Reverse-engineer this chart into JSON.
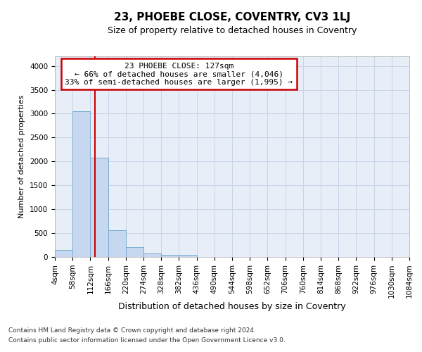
{
  "title": "23, PHOEBE CLOSE, COVENTRY, CV3 1LJ",
  "subtitle": "Size of property relative to detached houses in Coventry",
  "xlabel": "Distribution of detached houses by size in Coventry",
  "ylabel": "Number of detached properties",
  "bar_color": "#c5d8f0",
  "bar_edge_color": "#7aabcf",
  "bin_edges": [
    4,
    58,
    112,
    166,
    220,
    274,
    328,
    382,
    436,
    490,
    544,
    598,
    652,
    706,
    760,
    814,
    868,
    922,
    976,
    1030,
    1084
  ],
  "bar_heights": [
    150,
    3055,
    2075,
    560,
    210,
    80,
    50,
    50,
    0,
    0,
    0,
    0,
    0,
    0,
    0,
    0,
    0,
    0,
    0,
    0
  ],
  "vline_x": 127,
  "vline_color": "#cc0000",
  "annotation_line1": "23 PHOEBE CLOSE: 127sqm",
  "annotation_line2": "← 66% of detached houses are smaller (4,046)",
  "annotation_line3": "33% of semi-detached houses are larger (1,995) →",
  "annotation_box_color": "#cc0000",
  "ylim": [
    0,
    4200
  ],
  "yticks": [
    0,
    500,
    1000,
    1500,
    2000,
    2500,
    3000,
    3500,
    4000
  ],
  "footnote1": "Contains HM Land Registry data © Crown copyright and database right 2024.",
  "footnote2": "Contains public sector information licensed under the Open Government Licence v3.0.",
  "background_color": "#e8eef8",
  "grid_color": "#c8d4e8",
  "title_fontsize": 11,
  "subtitle_fontsize": 9,
  "ylabel_fontsize": 8,
  "xlabel_fontsize": 9,
  "tick_fontsize": 7.5,
  "footnote_fontsize": 6.5
}
